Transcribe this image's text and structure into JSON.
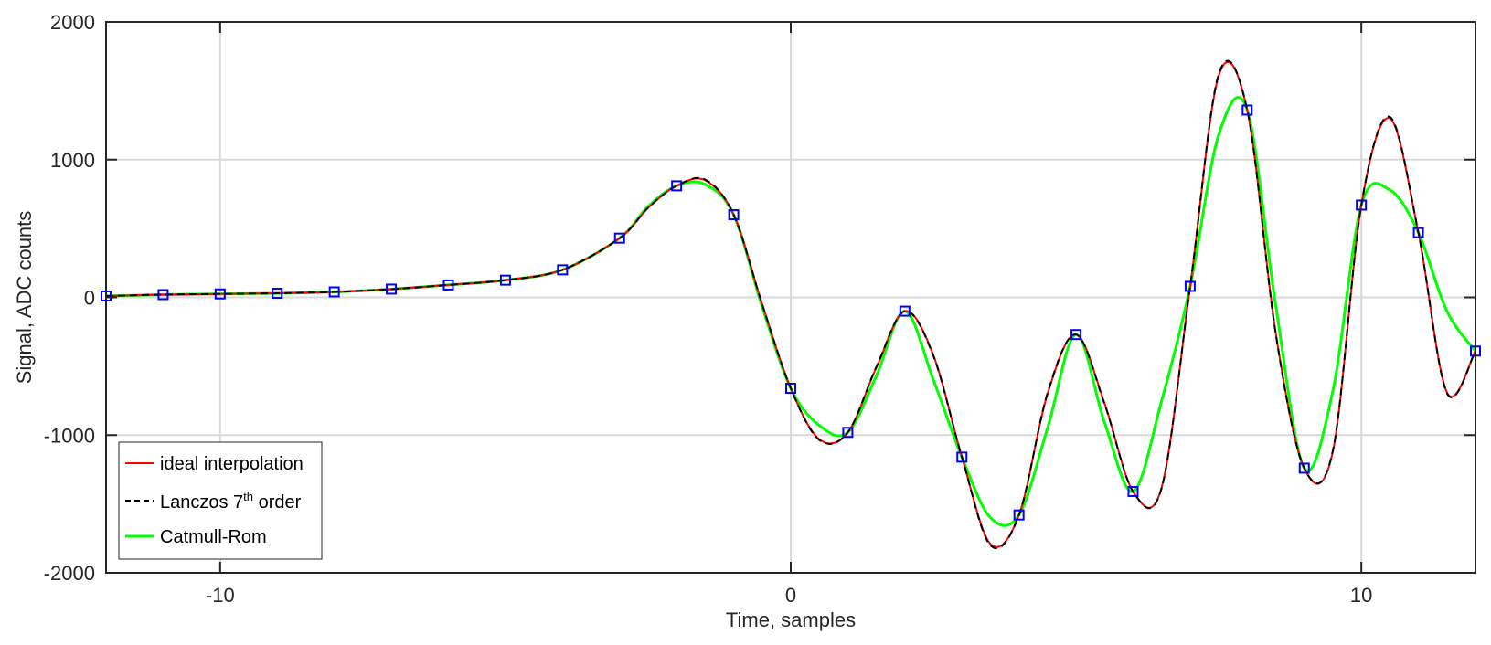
{
  "chart_data": {
    "type": "line",
    "title": "",
    "xlabel": "Time, samples",
    "ylabel": "Signal, ADC counts",
    "xlim": [
      -12,
      12
    ],
    "ylim": [
      -2000,
      2000
    ],
    "xticks": [
      -10,
      0,
      10
    ],
    "xtick_labels": [
      "-10",
      "0",
      "10"
    ],
    "yticks": [
      -2000,
      -1000,
      0,
      1000,
      2000
    ],
    "ytick_labels": [
      "-2000",
      "-1000",
      "0",
      "1000",
      "2000"
    ],
    "grid": true,
    "legend_position": "bottom-left",
    "legend": [
      {
        "label": "ideal interpolation",
        "color": "#ff0000",
        "style": "solid"
      },
      {
        "label_main": "Lanczos 7",
        "label_sup": "th",
        "label_tail": " order",
        "color": "#000000",
        "style": "dashed"
      },
      {
        "label": "Catmull-Rom",
        "color": "#00ff00",
        "style": "solid"
      }
    ],
    "samples": {
      "name": "samples",
      "marker": "square",
      "color": "#0000ff",
      "x": [
        -12,
        -11,
        -10,
        -9,
        -8,
        -7,
        -6,
        -5,
        -4,
        -3,
        -2,
        -1,
        0,
        1,
        2,
        3,
        4,
        5,
        6,
        7,
        8,
        9,
        10,
        11,
        12
      ],
      "y": [
        10,
        20,
        25,
        30,
        40,
        60,
        90,
        125,
        200,
        430,
        810,
        600,
        -660,
        -980,
        -100,
        -1160,
        -1580,
        -270,
        -1410,
        80,
        1360,
        -1240,
        670,
        470,
        -390
      ]
    },
    "series": [
      {
        "name": "ideal interpolation",
        "color": "#ff0000",
        "x": [
          -12,
          -11,
          -10,
          -9,
          -8,
          -7,
          -6,
          -5,
          -4,
          -3,
          -2.5,
          -2,
          -1.5,
          -1,
          -0.5,
          0,
          0.5,
          1,
          1.5,
          2,
          2.5,
          3,
          3.5,
          4,
          4.5,
          5,
          5.5,
          6,
          6.5,
          7,
          7.5,
          8,
          8.5,
          9,
          9.5,
          10,
          10.5,
          11,
          11.5,
          12
        ],
        "y": [
          10,
          20,
          25,
          30,
          40,
          60,
          90,
          125,
          200,
          430,
          650,
          810,
          850,
          600,
          -50,
          -660,
          -1030,
          -980,
          -510,
          -100,
          -420,
          -1160,
          -1790,
          -1580,
          -700,
          -270,
          -770,
          -1410,
          -1380,
          80,
          1610,
          1360,
          -260,
          -1240,
          -1120,
          670,
          1300,
          470,
          -690,
          -390
        ]
      },
      {
        "name": "Lanczos 7th order",
        "color": "#000000",
        "x": [
          -12,
          -11,
          -10,
          -9,
          -8,
          -7,
          -6,
          -5,
          -4,
          -3,
          -2.5,
          -2,
          -1.5,
          -1,
          -0.5,
          0,
          0.5,
          1,
          1.5,
          2,
          2.5,
          3,
          3.5,
          4,
          4.5,
          5,
          5.5,
          6,
          6.5,
          7,
          7.5,
          8,
          8.5,
          9,
          9.5,
          10,
          10.5,
          11,
          11.5,
          12
        ],
        "y": [
          10,
          20,
          25,
          30,
          40,
          60,
          90,
          125,
          200,
          430,
          650,
          810,
          855,
          600,
          -50,
          -660,
          -1035,
          -980,
          -505,
          -100,
          -425,
          -1160,
          -1800,
          -1580,
          -695,
          -270,
          -775,
          -1410,
          -1385,
          80,
          1620,
          1360,
          -265,
          -1240,
          -1115,
          670,
          1310,
          470,
          -695,
          -390
        ]
      },
      {
        "name": "Catmull-Rom",
        "color": "#00ff00",
        "x": [
          -12,
          -11,
          -10,
          -9,
          -8,
          -7,
          -6,
          -5,
          -4,
          -3,
          -2.5,
          -2,
          -1.5,
          -1,
          -0.5,
          0,
          0.5,
          1,
          1.5,
          2,
          2.5,
          3,
          3.5,
          4,
          4.5,
          5,
          5.5,
          6,
          6.5,
          7,
          7.5,
          8,
          8.5,
          9,
          9.5,
          10,
          10.5,
          11,
          11.5,
          12
        ],
        "y": [
          10,
          20,
          25,
          30,
          40,
          60,
          90,
          125,
          200,
          430,
          660,
          810,
          820,
          600,
          -70,
          -660,
          -930,
          -980,
          -570,
          -100,
          -600,
          -1160,
          -1600,
          -1580,
          -950,
          -270,
          -910,
          -1410,
          -750,
          80,
          1180,
          1360,
          -60,
          -1240,
          -680,
          670,
          780,
          470,
          -100,
          -390
        ]
      }
    ]
  }
}
